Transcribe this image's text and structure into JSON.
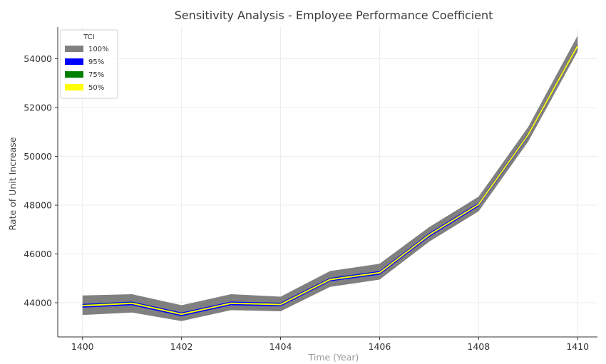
{
  "chart_data": {
    "type": "line",
    "title": "Sensitivity Analysis - Employee Performance Coefficient",
    "xlabel": "Time (Year)",
    "ylabel": "Rate of Unit Increase",
    "x": [
      1400,
      1401,
      1402,
      1403,
      1404,
      1405,
      1406,
      1407,
      1408,
      1409,
      1410
    ],
    "series": [
      {
        "name": "100%",
        "color": "#808080",
        "lower": [
          43500,
          43600,
          43250,
          43700,
          43650,
          44650,
          44950,
          46500,
          47750,
          50600,
          54300
        ],
        "upper": [
          44300,
          44350,
          43900,
          44350,
          44250,
          45300,
          45600,
          47100,
          48350,
          51200,
          54950
        ]
      },
      {
        "name": "95%",
        "color": "#0000ff",
        "lower": [
          43800,
          43900,
          43450,
          43900,
          43850,
          44880,
          45150,
          46700,
          47950,
          50800,
          54450
        ],
        "upper": [
          43950,
          44050,
          43600,
          44050,
          44000,
          45020,
          45300,
          46850,
          48100,
          50950,
          54600
        ]
      },
      {
        "name": "75%",
        "color": "#008000",
        "lower": [
          43850,
          43950,
          43500,
          43950,
          43900,
          44920,
          45200,
          46750,
          48000,
          50850,
          54500
        ],
        "upper": [
          43920,
          44020,
          43560,
          44010,
          43970,
          44990,
          45260,
          46810,
          48060,
          50910,
          54560
        ]
      },
      {
        "name": "50%",
        "color": "#ffff00",
        "values": [
          43880,
          43980,
          43530,
          43980,
          43930,
          44950,
          45230,
          46780,
          48030,
          50880,
          54530
        ]
      }
    ],
    "xticks": [
      1400,
      1402,
      1404,
      1406,
      1408,
      1410
    ],
    "yticks": [
      44000,
      46000,
      48000,
      50000,
      52000,
      54000
    ],
    "xlim": [
      1399.5,
      1410.4
    ],
    "ylim": [
      42600,
      55300
    ],
    "legend": {
      "title": "TCI",
      "placement": "top-left"
    },
    "grid": true
  }
}
